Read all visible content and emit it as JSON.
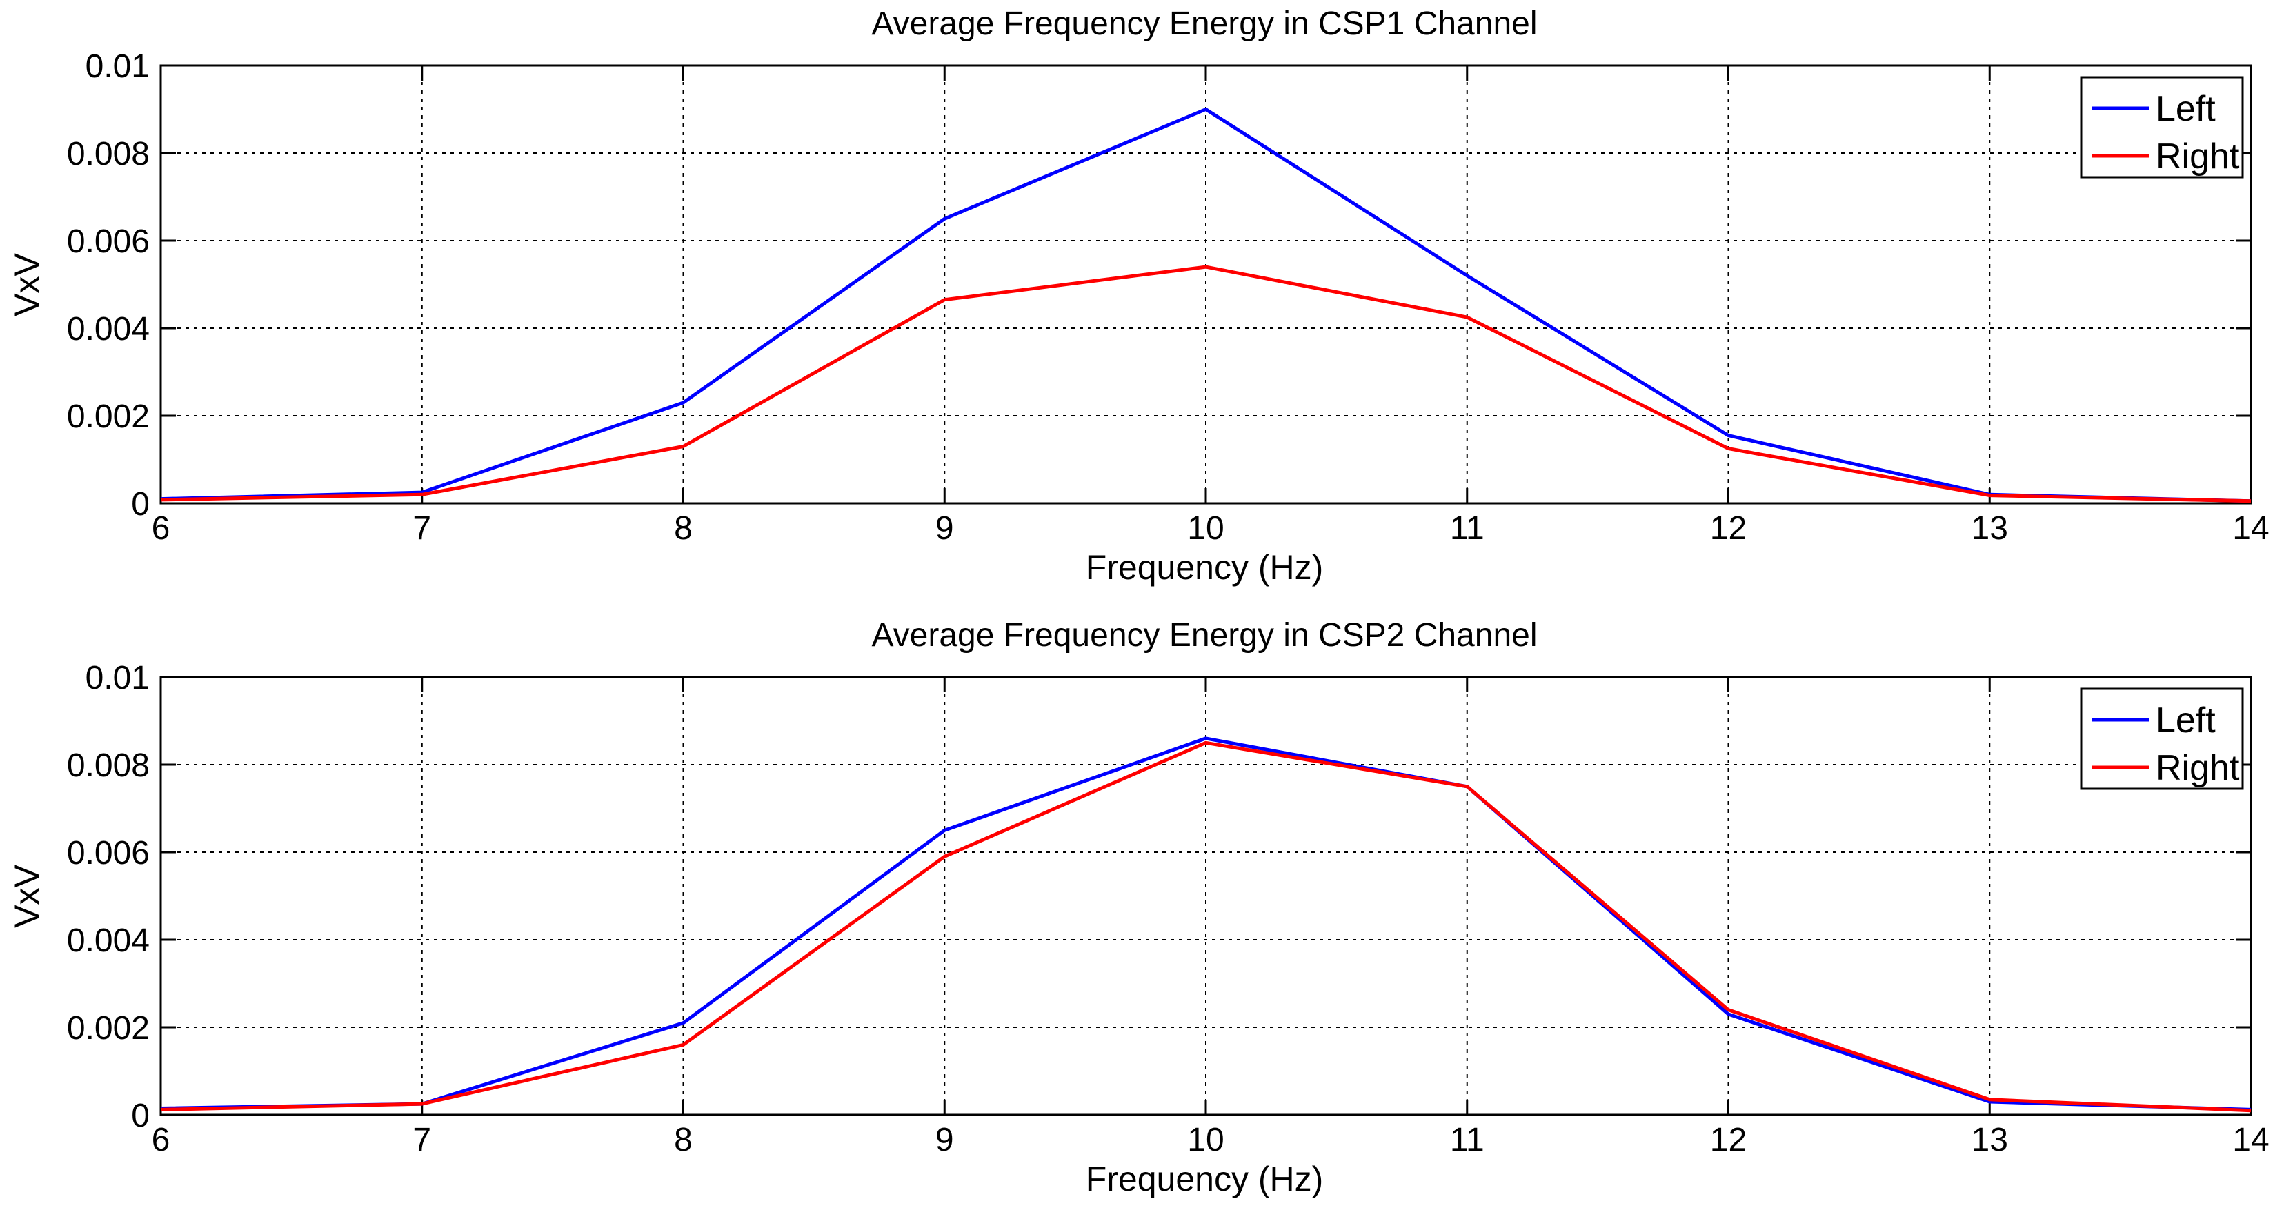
{
  "chart_data": [
    {
      "type": "line",
      "title": "Average Frequency Energy in CSP1 Channel",
      "xlabel": "Frequency (Hz)",
      "ylabel": "VxV",
      "x": [
        6,
        7,
        8,
        9,
        10,
        11,
        12,
        13,
        14
      ],
      "xlim": [
        6,
        14
      ],
      "ylim": [
        0,
        0.01
      ],
      "xticks": [
        "6",
        "7",
        "8",
        "9",
        "10",
        "11",
        "12",
        "13",
        "14"
      ],
      "yticks": [
        "0",
        "0.002",
        "0.004",
        "0.006",
        "0.008",
        "0.01"
      ],
      "ytick_values": [
        0,
        0.002,
        0.004,
        0.006,
        0.008,
        0.01
      ],
      "grid": true,
      "legend_position": "top-right",
      "series": [
        {
          "name": "Left",
          "color": "#0000ff",
          "values": [
            0.0001,
            0.00025,
            0.0023,
            0.0065,
            0.009,
            0.0052,
            0.00155,
            0.0002,
            5e-05
          ]
        },
        {
          "name": "Right",
          "color": "#ff0000",
          "values": [
            8e-05,
            0.0002,
            0.0013,
            0.00465,
            0.0054,
            0.00425,
            0.00125,
            0.00018,
            5e-05
          ]
        }
      ]
    },
    {
      "type": "line",
      "title": "Average Frequency Energy in CSP2 Channel",
      "xlabel": "Frequency (Hz)",
      "ylabel": "VxV",
      "x": [
        6,
        7,
        8,
        9,
        10,
        11,
        12,
        13,
        14
      ],
      "xlim": [
        6,
        14
      ],
      "ylim": [
        0,
        0.01
      ],
      "xticks": [
        "6",
        "7",
        "8",
        "9",
        "10",
        "11",
        "12",
        "13",
        "14"
      ],
      "yticks": [
        "0",
        "0.002",
        "0.004",
        "0.006",
        "0.008",
        "0.01"
      ],
      "ytick_values": [
        0,
        0.002,
        0.004,
        0.006,
        0.008,
        0.01
      ],
      "grid": true,
      "legend_position": "top-right",
      "series": [
        {
          "name": "Left",
          "color": "#0000ff",
          "values": [
            0.00015,
            0.00025,
            0.0021,
            0.0065,
            0.0086,
            0.0075,
            0.0023,
            0.0003,
            0.00012
          ]
        },
        {
          "name": "Right",
          "color": "#ff0000",
          "values": [
            0.00012,
            0.00025,
            0.0016,
            0.0059,
            0.0085,
            0.0075,
            0.0024,
            0.00035,
            0.0001
          ]
        }
      ]
    }
  ]
}
